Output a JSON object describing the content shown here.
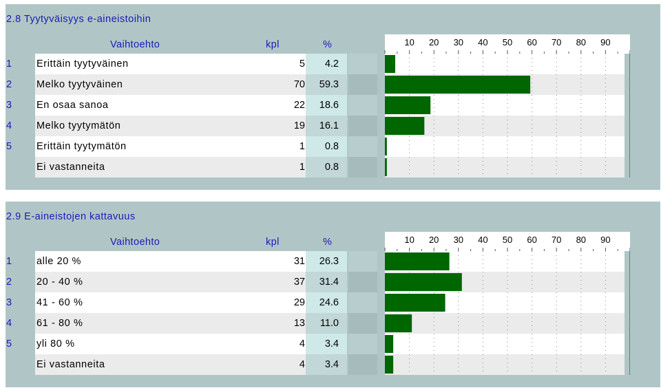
{
  "headers": {
    "option": "Vaihtoehto",
    "count": "kpl",
    "percent": "%"
  },
  "ticks": [
    "10",
    "20",
    "30",
    "40",
    "50",
    "60",
    "70",
    "80",
    "90"
  ],
  "colors": {
    "bar": "#006600",
    "panel": "#b0c6c6",
    "rowLight": "#ffffff",
    "rowDark": "#ebebeb",
    "pctLight": "#cfe8e8",
    "pctDark": "#c2d7d7",
    "text": "#1a1ab8",
    "axisLine": "#2b6f8f"
  },
  "chart_data": [
    {
      "type": "bar",
      "title": "2.8 Tyytyväisyys e-aineistoihin",
      "xlim": [
        0,
        100
      ],
      "rows": [
        {
          "num": "1",
          "label": "Erittäin tyytyväinen",
          "kpl": "5",
          "pct": "4.2",
          "value": 4.2
        },
        {
          "num": "2",
          "label": "Melko tyytyväinen",
          "kpl": "70",
          "pct": "59.3",
          "value": 59.3
        },
        {
          "num": "3",
          "label": "En osaa sanoa",
          "kpl": "22",
          "pct": "18.6",
          "value": 18.6
        },
        {
          "num": "4",
          "label": "Melko tyytymätön",
          "kpl": "19",
          "pct": "16.1",
          "value": 16.1
        },
        {
          "num": "5",
          "label": "Erittäin tyytymätön",
          "kpl": "1",
          "pct": "0.8",
          "value": 0.8
        },
        {
          "num": "",
          "label": "Ei vastanneita",
          "kpl": "1",
          "pct": "0.8",
          "value": 0.8
        }
      ]
    },
    {
      "type": "bar",
      "title": "2.9 E-aineistojen kattavuus",
      "xlim": [
        0,
        100
      ],
      "rows": [
        {
          "num": "1",
          "label": "alle 20 %",
          "kpl": "31",
          "pct": "26.3",
          "value": 26.3
        },
        {
          "num": "2",
          "label": "20 - 40 %",
          "kpl": "37",
          "pct": "31.4",
          "value": 31.4
        },
        {
          "num": "3",
          "label": "41 - 60 %",
          "kpl": "29",
          "pct": "24.6",
          "value": 24.6
        },
        {
          "num": "4",
          "label": "61 - 80 %",
          "kpl": "13",
          "pct": "11.0",
          "value": 11.0
        },
        {
          "num": "5",
          "label": "yli 80 %",
          "kpl": "4",
          "pct": "3.4",
          "value": 3.4
        },
        {
          "num": "",
          "label": "Ei vastanneita",
          "kpl": "4",
          "pct": "3.4",
          "value": 3.4
        }
      ]
    }
  ]
}
